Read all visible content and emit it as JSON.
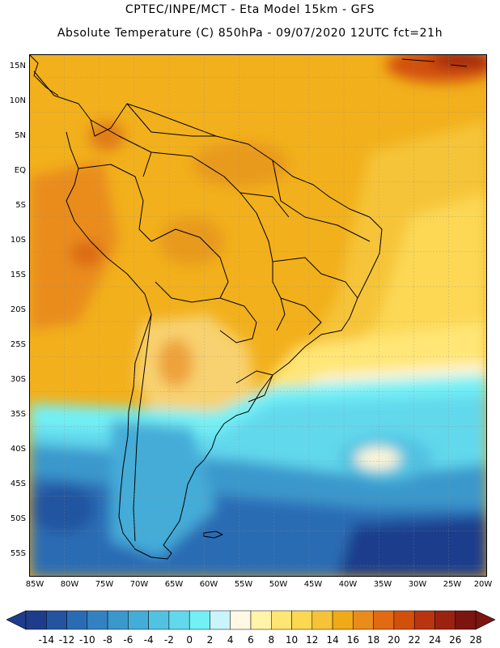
{
  "header": {
    "line1": "CPTEC/INPE/MCT -  Eta Model 15km - GFS",
    "line2": "Absolute Temperature (C) 850hPa - 09/07/2020 12UTC fct=21h"
  },
  "map": {
    "region": "South America",
    "lat_labels": [
      "15N",
      "10N",
      "5N",
      "EQ",
      "5S",
      "10S",
      "15S",
      "20S",
      "25S",
      "30S",
      "35S",
      "40S",
      "45S",
      "50S",
      "55S"
    ],
    "lon_labels": [
      "85W",
      "80W",
      "75W",
      "70W",
      "65W",
      "60W",
      "55W",
      "50W",
      "45W",
      "40W",
      "35W",
      "30W",
      "25W",
      "20W"
    ]
  },
  "colorbar": {
    "labels": [
      "-14",
      "-12",
      "-10",
      "-8",
      "-6",
      "-4",
      "-2",
      "0",
      "2",
      "4",
      "6",
      "8",
      "10",
      "12",
      "14",
      "16",
      "18",
      "20",
      "22",
      "24",
      "26",
      "28"
    ],
    "colors": [
      "#1e3c8c",
      "#2454a0",
      "#2a6cb4",
      "#3282c2",
      "#3a98cc",
      "#44acd8",
      "#52c2e2",
      "#62d8ec",
      "#72f0f6",
      "#c8f4fa",
      "#fff8e4",
      "#fff4a8",
      "#ffe674",
      "#fcd850",
      "#f6c238",
      "#f0aa18",
      "#ea8c1c",
      "#e26a12",
      "#d2500c",
      "#ba3410",
      "#9c2210",
      "#7c1410"
    ]
  },
  "colors": {
    "land_outline": "#000000",
    "frame": "#000000"
  }
}
